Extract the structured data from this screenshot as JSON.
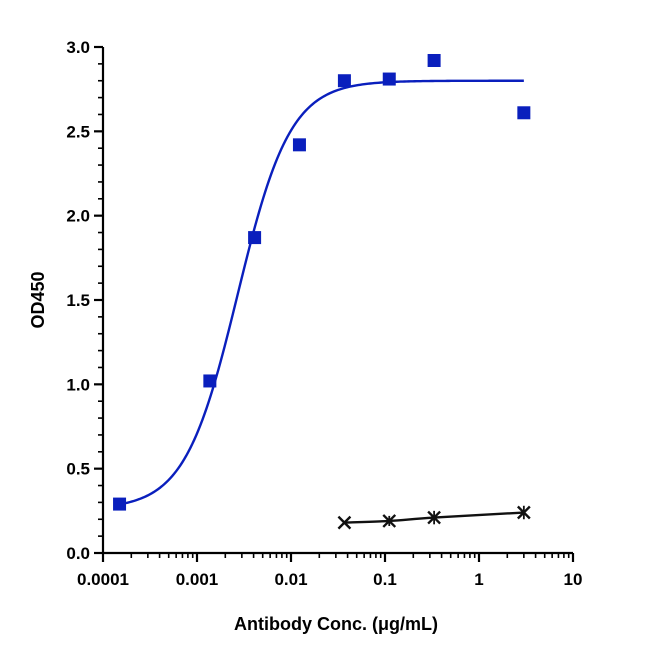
{
  "chart_data": {
    "type": "scatter",
    "xlabel": "Antibody Conc. (μg/mL)",
    "ylabel": "OD450",
    "x_scale": "log",
    "xlim": [
      0.0001,
      10
    ],
    "ylim": [
      0,
      3.0
    ],
    "x_ticks": [
      "0.0001",
      "0.001",
      "0.01",
      "0.1",
      "1",
      "10"
    ],
    "y_ticks": [
      "0.0",
      "0.5",
      "1.0",
      "1.5",
      "2.0",
      "2.5",
      "3.0"
    ],
    "grid": false,
    "series": [
      {
        "marker": "square",
        "color": "#0a1fbd",
        "x": [
          0.00015,
          0.00137,
          0.0041,
          0.0123,
          0.037,
          0.111,
          0.333,
          3.0
        ],
        "y": [
          0.29,
          1.02,
          1.87,
          2.42,
          2.8,
          2.81,
          2.92,
          2.61
        ],
        "fit": {
          "type": "4PL",
          "bottom": 0.26,
          "top": 2.8,
          "ec50": 0.0027,
          "hill": 1.55
        }
      },
      {
        "marker": "x",
        "color": "#111111",
        "x": [
          0.037,
          0.111,
          0.333,
          3.0
        ],
        "y": [
          0.18,
          0.19,
          0.21,
          0.24
        ],
        "error": [
          0.01,
          0.03,
          0.04,
          0.04
        ],
        "fit": {
          "type": "smooth"
        }
      }
    ]
  }
}
